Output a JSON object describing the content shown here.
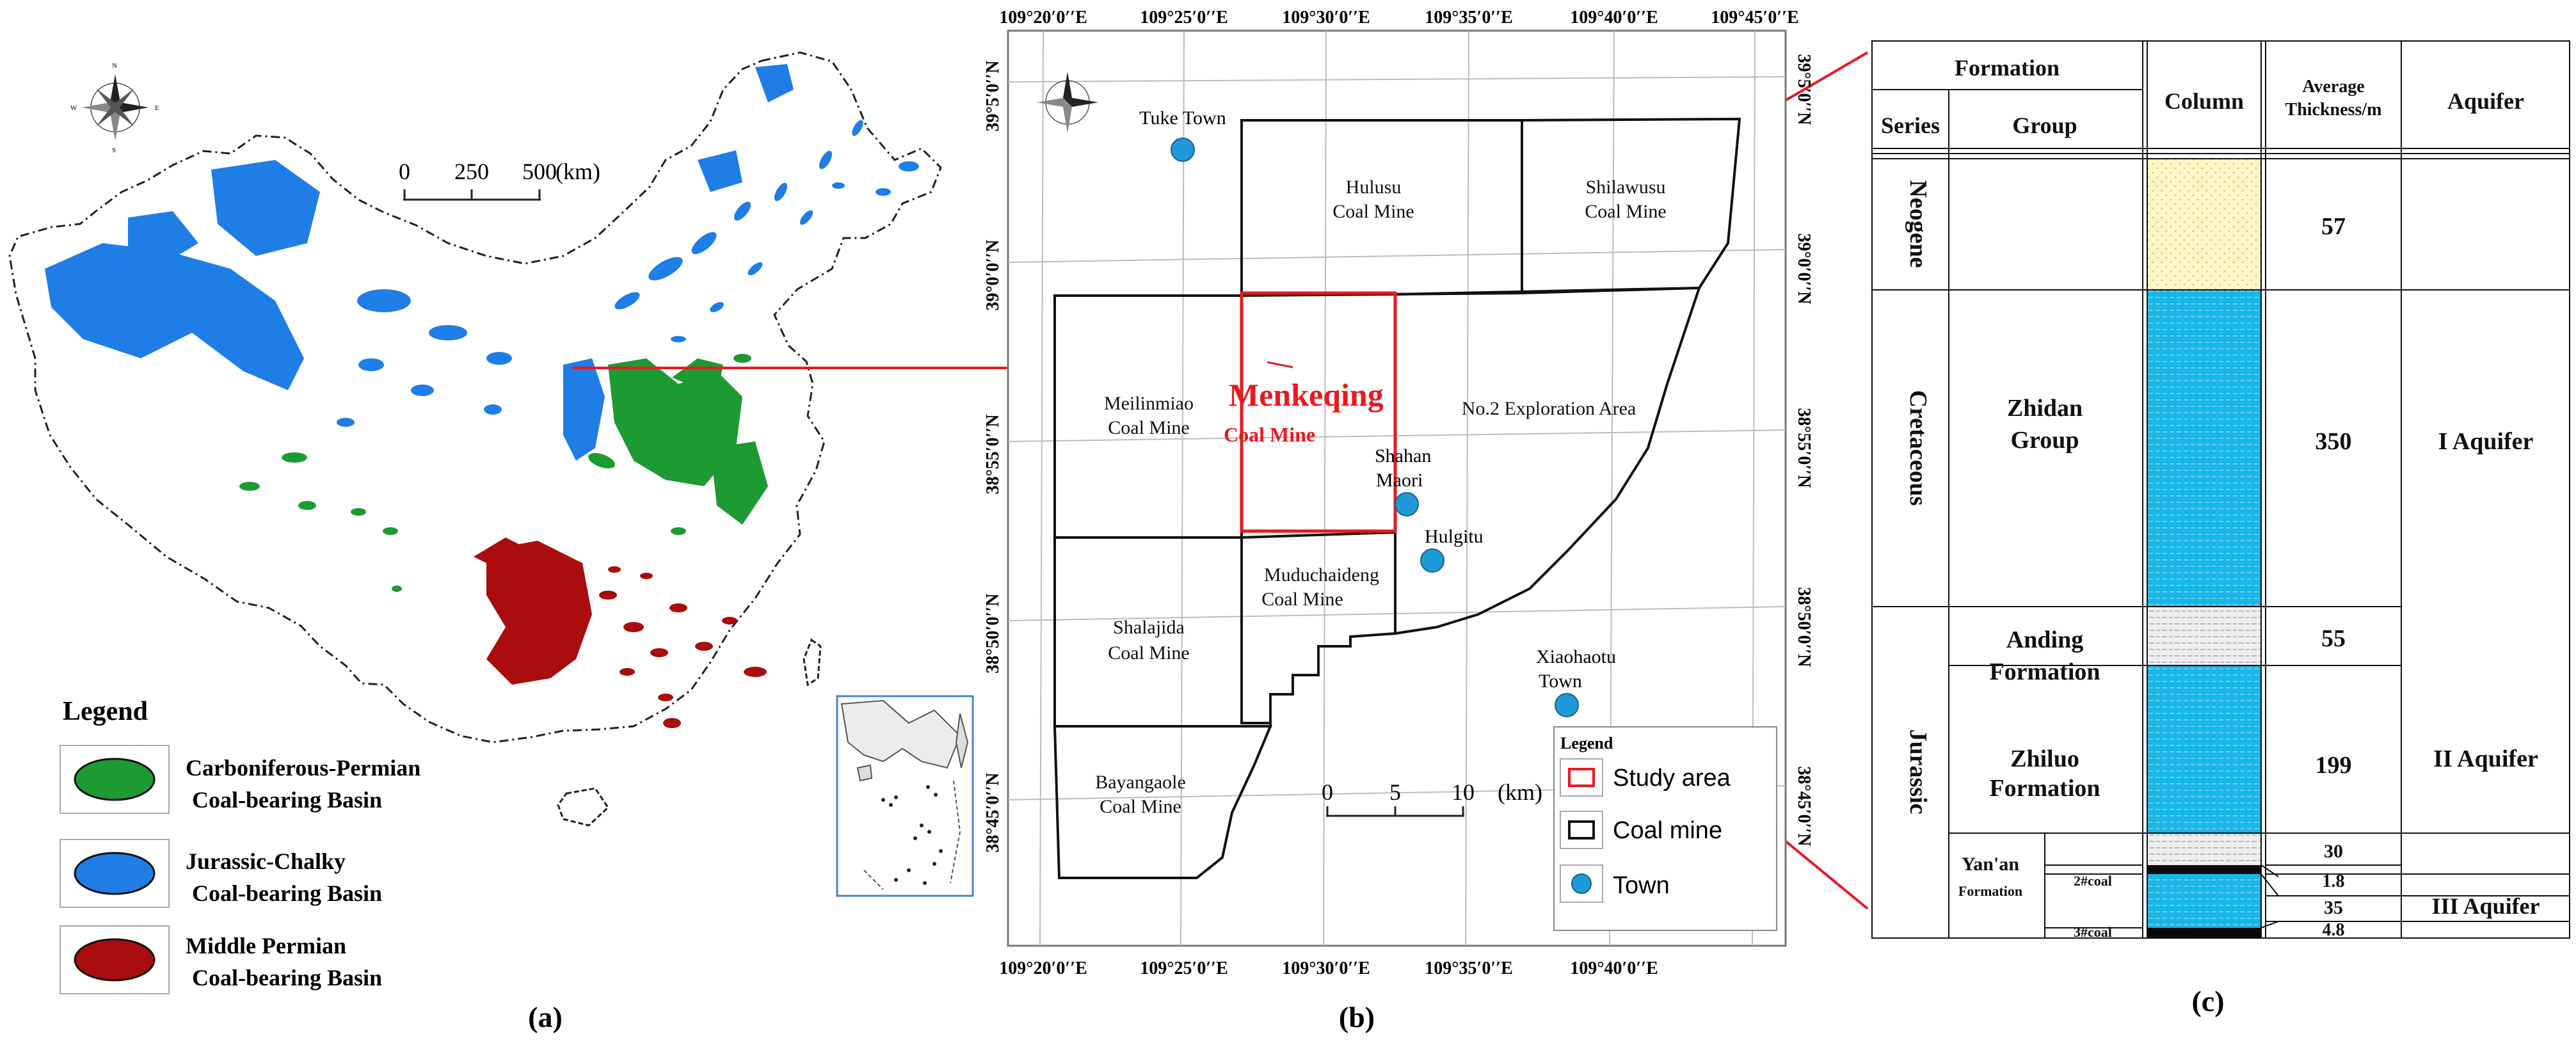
{
  "panel_labels": [
    "(a)",
    "(b)",
    "(c)"
  ],
  "panel_a": {
    "scale_ticks": [
      "0",
      "250",
      "500"
    ],
    "scale_unit": "(km)",
    "legend_title": "Legend",
    "legend": [
      {
        "line1": "Carboniferous-Permian",
        "line2": "Coal-bearing Basin",
        "color": "#1e9a32"
      },
      {
        "line1": "Jurassic-Chalky",
        "line2": "Coal-bearing Basin",
        "color": "#1f7de6"
      },
      {
        "line1": "Middle Permian",
        "line2": "Coal-bearing Basin",
        "color": "#a90d0d"
      }
    ],
    "compass_letters": [
      "N",
      "S",
      "W",
      "E"
    ]
  },
  "panel_b": {
    "top_lon": [
      "109°20′0′′E",
      "109°25′0′′E",
      "109°30′0′′E",
      "109°35′0′′E",
      "109°40′0′′E",
      "109°45′0′′E"
    ],
    "bottom_lon": [
      "109°20′0′′E",
      "109°25′0′′E",
      "109°30′0′′E",
      "109°35′0′′E",
      "109°40′0′′E"
    ],
    "left_lat": [
      "39°5′0′′N",
      "39°0′0′′N",
      "38°55′0′′N",
      "38°50′0′′N",
      "38°45′0′′N"
    ],
    "right_lat": [
      "39°5′0′′N",
      "39°0′0′′N",
      "38°55′0′′N",
      "38°50′0′′N",
      "38°45′0′′N"
    ],
    "mines": [
      {
        "line1": "Hulusu",
        "line2": "Coal Mine"
      },
      {
        "line1": "Shilawusu",
        "line2": "Coal Mine"
      },
      {
        "line1": "Meilinmiao",
        "line2": "Coal Mine"
      },
      {
        "line1": "Muduchaideng",
        "line2": "Coal Mine"
      },
      {
        "line1": "Shalajida",
        "line2": "Coal Mine"
      },
      {
        "line1": "Bayangaole",
        "line2": "Coal Mine"
      }
    ],
    "exploration_area": "No.2 Exploration Area",
    "study_area": {
      "line1": "Menkeqing",
      "line2": "Coal Mine"
    },
    "towns": [
      {
        "line1": "Tuke Town",
        "line2": ""
      },
      {
        "line1": "Shahan",
        "line2": "Maori"
      },
      {
        "line1": "Hulgitu",
        "line2": ""
      },
      {
        "line1": "Xiaohaotu",
        "line2": "Town"
      }
    ],
    "scale_ticks": [
      "0",
      "5",
      "10"
    ],
    "scale_unit": "(km)",
    "legend_title": "Legend",
    "legend": [
      "Study area",
      "Coal mine",
      "Town"
    ],
    "colors": {
      "study_area": "#e8191f",
      "town": "#1e9ad8"
    }
  },
  "panel_c": {
    "headers": {
      "formation": "Formation",
      "series": "Series",
      "group": "Group",
      "column": "Column",
      "avg_line1": "Average",
      "avg_line2": "Thickness/m",
      "aquifer": "Aquifer"
    },
    "series": [
      "Neogene",
      "Cretaceous",
      "Jurassic"
    ],
    "groups": [
      {
        "line1": "Zhidan",
        "line2": "Group"
      },
      {
        "line1": "Anding",
        "line2": "Formation"
      },
      {
        "line1": "Zhiluo",
        "line2": "Formation"
      },
      {
        "line1": "Yan'an",
        "line2": "Formation"
      }
    ],
    "sublayers": [
      "2#coal",
      "3#coal"
    ],
    "thickness": [
      "57",
      "350",
      "55",
      "199",
      "30",
      "1.8",
      "35",
      "4.8"
    ],
    "aquifers": [
      "I Aquifer",
      "II Aquifer",
      "III Aquifer"
    ],
    "colors": {
      "sand": "#fbf6c4",
      "aquifer": "#17b6e6",
      "coal": "#0a0a0a"
    }
  }
}
